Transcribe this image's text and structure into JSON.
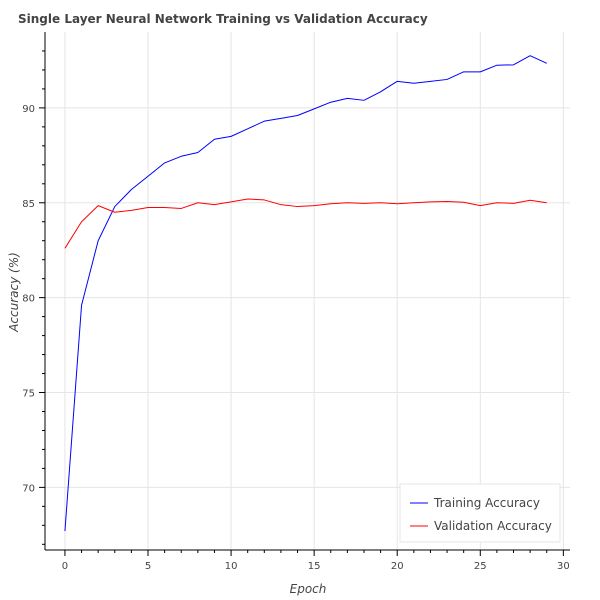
{
  "chart_data": {
    "type": "line",
    "title": "Single Layer Neural Network Training vs Validation Accuracy",
    "xlabel": "Epoch",
    "ylabel": "Accuracy (%)",
    "xlim": [
      -1.2,
      30.4
    ],
    "ylim": [
      66.7,
      94.0
    ],
    "xticks": [
      0,
      5,
      10,
      15,
      20,
      25,
      30
    ],
    "yticks": [
      70,
      75,
      80,
      85,
      90
    ],
    "grid": true,
    "legend_position": "bottom-right",
    "x": [
      0,
      1,
      2,
      3,
      4,
      5,
      6,
      7,
      8,
      9,
      10,
      11,
      12,
      13,
      14,
      15,
      16,
      17,
      18,
      19,
      20,
      21,
      22,
      23,
      24,
      25,
      26,
      27,
      28,
      29
    ],
    "series": [
      {
        "name": "Training Accuracy",
        "color": "#0000ff",
        "values": [
          67.7,
          79.6,
          83.0,
          84.8,
          85.7,
          86.4,
          87.1,
          87.45,
          87.65,
          88.35,
          88.5,
          88.9,
          89.3,
          89.45,
          89.6,
          89.95,
          90.3,
          90.5,
          90.4,
          90.85,
          91.4,
          91.3,
          91.4,
          91.5,
          91.9,
          91.9,
          92.25,
          92.27,
          92.75,
          92.35
        ]
      },
      {
        "name": "Validation Accuracy",
        "color": "#ff0000",
        "values": [
          82.6,
          84.0,
          84.85,
          84.5,
          84.6,
          84.75,
          84.75,
          84.7,
          85.0,
          84.9,
          85.05,
          85.2,
          85.15,
          84.9,
          84.8,
          84.85,
          84.95,
          85.0,
          84.97,
          85.0,
          84.95,
          85.0,
          85.05,
          85.07,
          85.03,
          84.85,
          85.0,
          84.97,
          85.13,
          85.0
        ]
      }
    ]
  }
}
